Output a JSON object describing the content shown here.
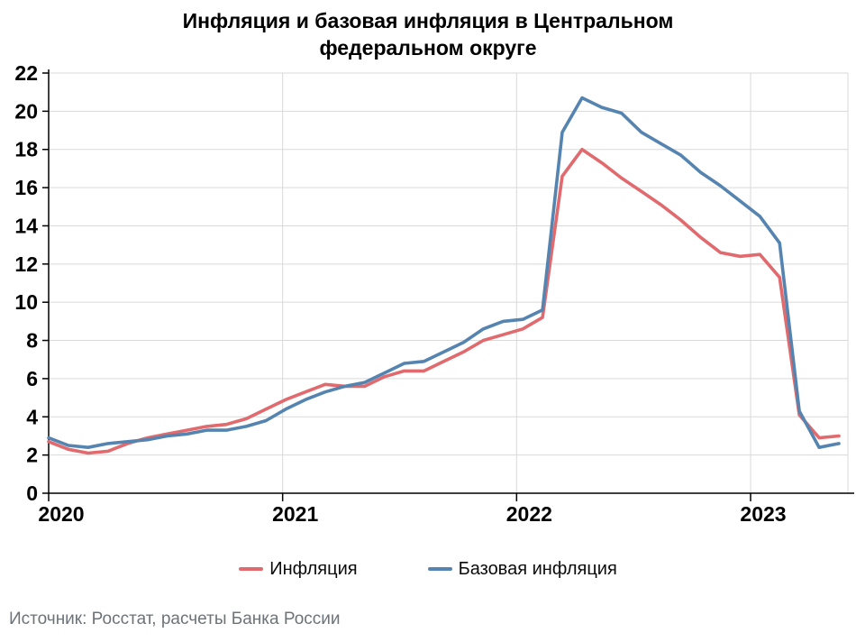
{
  "title": "Инфляция и базовая инфляция в Центральном федеральном округе",
  "source": "Источник: Росстат, расчеты Банка России",
  "legend": {
    "items": [
      {
        "label": "Инфляция",
        "color": "#e06a6e"
      },
      {
        "label": "Базовая инфляция",
        "color": "#5684b0"
      }
    ]
  },
  "chart_data": {
    "type": "line",
    "title": "Инфляция и базовая инфляция в Центральном федеральном округе",
    "categories": [
      "2020-01",
      "2020-02",
      "2020-03",
      "2020-04",
      "2020-05",
      "2020-06",
      "2020-07",
      "2020-08",
      "2020-09",
      "2020-10",
      "2020-11",
      "2020-12",
      "2021-01",
      "2021-02",
      "2021-03",
      "2021-04",
      "2021-05",
      "2021-06",
      "2021-07",
      "2021-08",
      "2021-09",
      "2021-10",
      "2021-11",
      "2021-12",
      "2022-01",
      "2022-02",
      "2022-03",
      "2022-04",
      "2022-05",
      "2022-06",
      "2022-07",
      "2022-08",
      "2022-09",
      "2022-10",
      "2022-11",
      "2022-12",
      "2023-01",
      "2023-02",
      "2023-03",
      "2023-04",
      "2023-05"
    ],
    "series": [
      {
        "name": "Инфляция",
        "color": "#e06a6e",
        "values": [
          2.7,
          2.3,
          2.1,
          2.2,
          2.6,
          2.9,
          3.1,
          3.3,
          3.5,
          3.6,
          3.9,
          4.4,
          4.9,
          5.3,
          5.7,
          5.6,
          5.6,
          6.1,
          6.4,
          6.4,
          6.9,
          7.4,
          8.0,
          8.3,
          8.6,
          9.2,
          16.6,
          18.0,
          17.3,
          16.5,
          15.8,
          15.1,
          14.3,
          13.4,
          12.6,
          12.4,
          12.5,
          11.3,
          4.1,
          2.9,
          3.0
        ]
      },
      {
        "name": "Базовая инфляция",
        "color": "#5684b0",
        "values": [
          2.9,
          2.5,
          2.4,
          2.6,
          2.7,
          2.8,
          3.0,
          3.1,
          3.3,
          3.3,
          3.5,
          3.8,
          4.4,
          4.9,
          5.3,
          5.6,
          5.8,
          6.3,
          6.8,
          6.9,
          7.4,
          7.9,
          8.6,
          9.0,
          9.1,
          9.6,
          18.9,
          20.7,
          20.2,
          19.9,
          18.9,
          18.3,
          17.7,
          16.8,
          16.1,
          15.3,
          14.5,
          13.1,
          4.3,
          2.4,
          2.6
        ]
      }
    ],
    "xtick_labels": [
      "2020",
      "2021",
      "2022",
      "2023"
    ],
    "ylim": [
      0,
      22
    ],
    "ytick_step": 2,
    "grid": true,
    "legend_position": "bottom",
    "xlabel": "",
    "ylabel": ""
  }
}
